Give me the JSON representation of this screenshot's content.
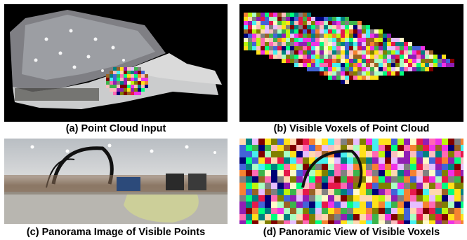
{
  "figure": {
    "panels": [
      {
        "id": "a",
        "caption": "(a) Point Cloud Input"
      },
      {
        "id": "b",
        "caption": "(b) Visible Voxels of  Point Cloud"
      },
      {
        "id": "c",
        "caption": "(c) Panorama Image of Visible Points"
      },
      {
        "id": "d",
        "caption": "(d) Panoramic View of Visible Voxels"
      }
    ]
  },
  "colors": {
    "background": "#000000",
    "voxel_palette": [
      "#e6194b",
      "#3cb44b",
      "#ffe119",
      "#4363d8",
      "#f58231",
      "#911eb4",
      "#46f0f0",
      "#f032e6",
      "#bcf60c",
      "#fabebe",
      "#008080",
      "#e6beff",
      "#9a6324",
      "#fffac8",
      "#800000",
      "#aaffc3",
      "#808000",
      "#ffd8b1",
      "#000075",
      "#808080",
      "#ff69b4",
      "#00ff7f"
    ],
    "highlight": "#d9e08a"
  }
}
